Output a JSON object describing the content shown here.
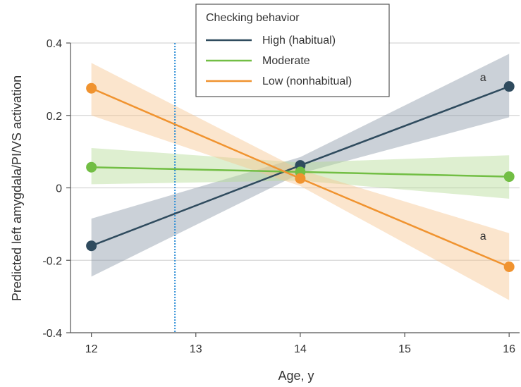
{
  "chart_data": {
    "type": "line",
    "xlabel": "Age, y",
    "ylabel": "Predicted left amygdala/PI/VS activation",
    "xlim": [
      11.8,
      16.1
    ],
    "ylim": [
      -0.4,
      0.4
    ],
    "x_ticks": [
      12,
      13,
      14,
      15,
      16
    ],
    "x_tick_labels": [
      "12",
      "13",
      "14",
      "15",
      "16"
    ],
    "y_ticks": [
      0.4,
      0.2,
      0,
      -0.2,
      -0.4
    ],
    "y_tick_labels": [
      "0.4",
      "0.2",
      "0",
      "-0.2",
      "-0.4"
    ],
    "grid": "horizontal",
    "legend_title": "Checking behavior",
    "legend_placement": "top-center",
    "vline_x": 12.8,
    "series": [
      {
        "name": "High (habitual)",
        "color": "#2f4b5e",
        "band_color": "#8c9aa8",
        "x": [
          12,
          14,
          16
        ],
        "y": [
          -0.16,
          0.062,
          0.28
        ],
        "lower": [
          -0.245,
          0.04,
          0.195
        ],
        "upper": [
          -0.085,
          0.085,
          0.37
        ]
      },
      {
        "name": "Moderate",
        "color": "#72be44",
        "band_color": "#b5dc97",
        "x": [
          12,
          14,
          16
        ],
        "y": [
          0.057,
          0.044,
          0.031
        ],
        "lower": [
          0.01,
          0.02,
          -0.03
        ],
        "upper": [
          0.11,
          0.07,
          0.09
        ]
      },
      {
        "name": "Low (nonhabitual)",
        "color": "#f0932f",
        "band_color": "#f6c690",
        "x": [
          12,
          14,
          16
        ],
        "y": [
          0.275,
          0.026,
          -0.218
        ],
        "lower": [
          0.2,
          0.005,
          -0.31
        ],
        "upper": [
          0.345,
          0.05,
          -0.125
        ]
      }
    ],
    "annotations": [
      {
        "text": "a",
        "x": 15.75,
        "y": 0.295
      },
      {
        "text": "a",
        "x": 15.75,
        "y": -0.143
      }
    ]
  }
}
